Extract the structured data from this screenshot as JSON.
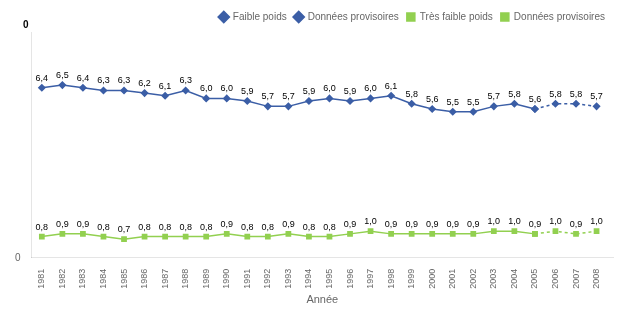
{
  "chart_data": {
    "type": "line",
    "xlabel": "Année",
    "annotations": [
      "0"
    ],
    "x": [
      1981,
      1982,
      1983,
      1984,
      1985,
      1986,
      1987,
      1988,
      1989,
      1990,
      1991,
      1992,
      1993,
      1994,
      1995,
      1996,
      1997,
      1998,
      1999,
      2000,
      2001,
      2002,
      2003,
      2004,
      2005,
      2006,
      2007,
      2008
    ],
    "xlim": [
      1980.5,
      2008.8
    ],
    "xticks": [
      1981,
      1982,
      1983,
      1984,
      1985,
      1986,
      1987,
      1988,
      1989,
      1990,
      1991,
      1992,
      1993,
      1994,
      1995,
      1996,
      1997,
      1998,
      1999,
      2000,
      2001,
      2002,
      2003,
      2004,
      2005,
      2006,
      2007,
      2008
    ],
    "ylim": [
      0.0,
      8.5
    ],
    "yticks": [
      0
    ],
    "grid": false,
    "legend": "upper right",
    "data_labels": true,
    "series": [
      {
        "name": "Faible poids",
        "color": "#3B5EA6",
        "marker": "diamond",
        "line_style": "solid",
        "values": [
          6.4,
          6.5,
          6.4,
          6.3,
          6.3,
          6.2,
          6.1,
          6.3,
          6.0,
          6.0,
          5.9,
          5.7,
          5.7,
          5.9,
          6.0,
          5.9,
          6.0,
          6.1,
          5.8,
          5.6,
          5.5,
          5.5,
          5.7,
          5.8,
          5.6,
          null,
          null,
          null
        ],
        "value_labels": [
          "6,4",
          "6,5",
          "6,4",
          "6,3",
          "6,3",
          "6,2",
          "6,1",
          "6,3",
          "6,0",
          "6,0",
          "5,9",
          "5,7",
          "5,7",
          "5,9",
          "6,0",
          "5,9",
          "6,0",
          "6,1",
          "5,8",
          "5,6",
          "5,5",
          "5,5",
          "5,7",
          "5,8",
          "5,6",
          null,
          null,
          null
        ]
      },
      {
        "name": "Données provisoires",
        "color": "#3B5EA6",
        "marker": "diamond",
        "line_style": "dotted",
        "values": [
          null,
          null,
          null,
          null,
          null,
          null,
          null,
          null,
          null,
          null,
          null,
          null,
          null,
          null,
          null,
          null,
          null,
          null,
          null,
          null,
          null,
          null,
          null,
          null,
          5.6,
          5.8,
          5.8,
          5.7
        ],
        "value_labels": [
          null,
          null,
          null,
          null,
          null,
          null,
          null,
          null,
          null,
          null,
          null,
          null,
          null,
          null,
          null,
          null,
          null,
          null,
          null,
          null,
          null,
          null,
          null,
          null,
          null,
          "5,8",
          "5,8",
          "5,7"
        ]
      },
      {
        "name": "Très faible poids",
        "color": "#92D050",
        "marker": "square",
        "line_style": "solid",
        "values": [
          0.8,
          0.9,
          0.9,
          0.8,
          0.7,
          0.8,
          0.8,
          0.8,
          0.8,
          0.9,
          0.8,
          0.8,
          0.9,
          0.8,
          0.8,
          0.9,
          1.0,
          0.9,
          0.9,
          0.9,
          0.9,
          0.9,
          1.0,
          1.0,
          0.9,
          null,
          null,
          null
        ],
        "value_labels": [
          "0,8",
          "0,9",
          "0,9",
          "0,8",
          "0,7",
          "0,8",
          "0,8",
          "0,8",
          "0,8",
          "0,9",
          "0,8",
          "0,8",
          "0,9",
          "0,8",
          "0,8",
          "0,9",
          "1,0",
          "0,9",
          "0,9",
          "0,9",
          "0,9",
          "0,9",
          "1,0",
          "1,0",
          "0,9",
          null,
          null,
          null
        ]
      },
      {
        "name": "Données provisoires",
        "color": "#92D050",
        "marker": "square",
        "line_style": "dotted",
        "values": [
          null,
          null,
          null,
          null,
          null,
          null,
          null,
          null,
          null,
          null,
          null,
          null,
          null,
          null,
          null,
          null,
          null,
          null,
          null,
          null,
          null,
          null,
          null,
          null,
          0.9,
          1.0,
          0.9,
          1.0
        ],
        "value_labels": [
          null,
          null,
          null,
          null,
          null,
          null,
          null,
          null,
          null,
          null,
          null,
          null,
          null,
          null,
          null,
          null,
          null,
          null,
          null,
          null,
          null,
          null,
          null,
          null,
          null,
          "1,0",
          "0,9",
          "1,0"
        ]
      }
    ]
  }
}
